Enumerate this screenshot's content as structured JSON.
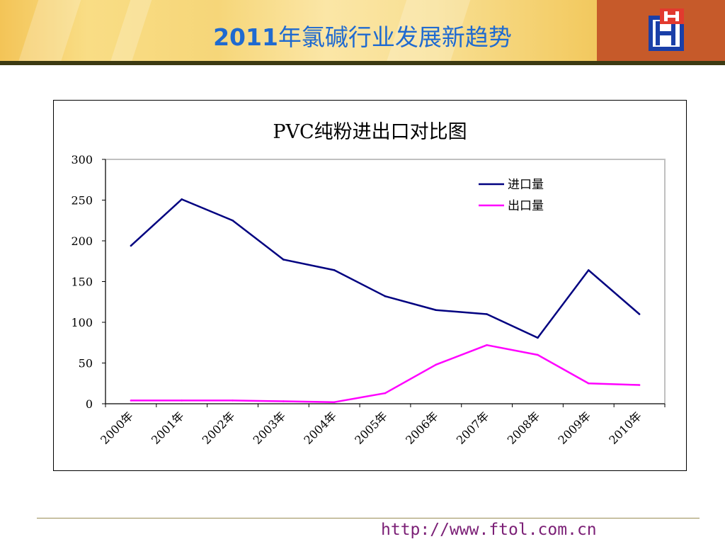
{
  "header": {
    "title_year": "2011",
    "title_rest": "年氯碱行业发展新趋势",
    "logo_icon": "hh-logo-icon",
    "title_color": "#1f6ad0"
  },
  "footer": {
    "url": "http://www.ftol.com.cn"
  },
  "chart_data": {
    "type": "line",
    "title": "PVC纯粉进出口对比图",
    "categories": [
      "2000年",
      "2001年",
      "2002年",
      "2003年",
      "2004年",
      "2005年",
      "2006年",
      "2007年",
      "2008年",
      "2009年",
      "2010年"
    ],
    "series": [
      {
        "name": "进口量",
        "color": "#000080",
        "values": [
          194,
          251,
          225,
          177,
          164,
          132,
          115,
          110,
          81,
          164,
          110
        ]
      },
      {
        "name": "出口量",
        "color": "#ff00ff",
        "values": [
          4,
          4,
          4,
          3,
          2,
          13,
          48,
          72,
          60,
          25,
          23
        ]
      }
    ],
    "yticks": [
      "0",
      "50",
      "100",
      "150",
      "200",
      "250",
      "300"
    ],
    "ylim": [
      0,
      300
    ],
    "grid": false,
    "legend": "top-right"
  }
}
